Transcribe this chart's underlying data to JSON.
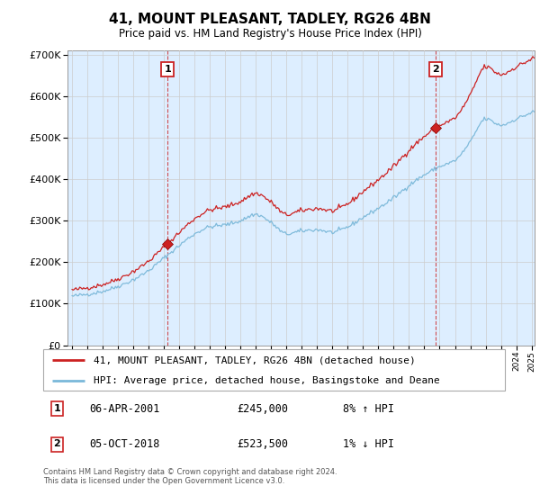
{
  "title": "41, MOUNT PLEASANT, TADLEY, RG26 4BN",
  "subtitle": "Price paid vs. HM Land Registry's House Price Index (HPI)",
  "legend_line1": "41, MOUNT PLEASANT, TADLEY, RG26 4BN (detached house)",
  "legend_line2": "HPI: Average price, detached house, Basingstoke and Deane",
  "annotation1_label": "1",
  "annotation1_date": "06-APR-2001",
  "annotation1_price": "£245,000",
  "annotation1_hpi": "8% ↑ HPI",
  "annotation2_label": "2",
  "annotation2_date": "05-OCT-2018",
  "annotation2_price": "£523,500",
  "annotation2_hpi": "1% ↓ HPI",
  "footer": "Contains HM Land Registry data © Crown copyright and database right 2024.\nThis data is licensed under the Open Government Licence v3.0.",
  "hpi_color": "#7ab8d9",
  "price_color": "#cc2222",
  "annotation_box_color": "#cc2222",
  "grid_color": "#cccccc",
  "plot_bg_color": "#ddeeff",
  "background_color": "#ffffff",
  "ylim": [
    0,
    700000
  ],
  "yticks": [
    0,
    100000,
    200000,
    300000,
    400000,
    500000,
    600000,
    700000
  ],
  "sale1_year": 2001.25,
  "sale1_price": 245000,
  "sale2_year": 2018.75,
  "sale2_price": 523500,
  "vline1_year": 2001.25,
  "vline2_year": 2018.75,
  "xmin": 1995.0,
  "xmax": 2025.2
}
